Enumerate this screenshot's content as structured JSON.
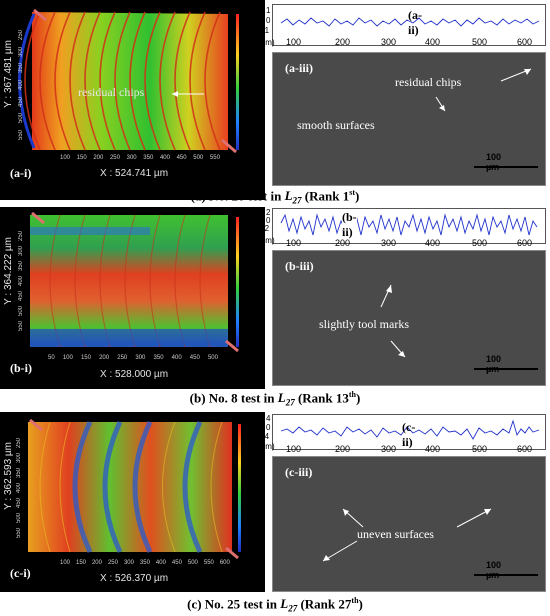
{
  "rows": [
    {
      "id": "a",
      "map_label": "(a-i)",
      "x_measure": "X : 524.741 µm",
      "y_measure": "Y : 367.481 µm",
      "x_ticks": [
        "100",
        "150",
        "200",
        "250",
        "300",
        "350",
        "400",
        "450",
        "500",
        "550"
      ],
      "y_ticks": [
        "250",
        "300",
        "350",
        "400",
        "450",
        "500",
        "550"
      ],
      "map_annotation": "residual chips",
      "profile_label": "(a-ii)",
      "profile_y_ticks": [
        "1",
        "0",
        "-1"
      ],
      "profile_unit": "(µm)",
      "profile_x_ticks": [
        "100",
        "200",
        "300",
        "400",
        "500",
        "600"
      ],
      "sem_label": "(a-iii)",
      "sem_annotations": [
        "residual chips",
        "smooth surfaces"
      ],
      "scale_bar": "100 µm",
      "caption_prefix": "(a)    No. 20 test in ",
      "caption_italic": "L",
      "caption_sub": "27",
      "caption_rank": " (Rank 1",
      "caption_sup": "st",
      "caption_close": ")"
    },
    {
      "id": "b",
      "map_label": "(b-i)",
      "x_measure": "X : 528.000 µm",
      "y_measure": "Y : 364.222 µm",
      "x_ticks": [
        "50",
        "100",
        "150",
        "200",
        "250",
        "300",
        "350",
        "400",
        "450",
        "500"
      ],
      "y_ticks": [
        "250",
        "300",
        "350",
        "400",
        "450",
        "500",
        "550"
      ],
      "profile_label": "(b-ii)",
      "profile_y_ticks": [
        "2",
        "0",
        "-2"
      ],
      "profile_unit": "(µm)",
      "profile_x_ticks": [
        "100",
        "200",
        "300",
        "400",
        "500",
        "600"
      ],
      "sem_label": "(b-iii)",
      "sem_annotations": [
        "slightly tool marks"
      ],
      "scale_bar": "100 µm",
      "caption_prefix": "(b)    No. 8 test in ",
      "caption_italic": "L",
      "caption_sub": "27",
      "caption_rank": " (Rank 13",
      "caption_sup": "th",
      "caption_close": ")"
    },
    {
      "id": "c",
      "map_label": "(c-i)",
      "x_measure": "X : 526.370 µm",
      "y_measure": "Y : 362.593 µm",
      "x_ticks": [
        "100",
        "150",
        "200",
        "250",
        "300",
        "350",
        "400",
        "450",
        "500",
        "550",
        "600"
      ],
      "y_ticks": [
        "250",
        "300",
        "350",
        "400",
        "450",
        "500",
        "550"
      ],
      "profile_label": "(c-ii)",
      "profile_y_ticks": [
        "4",
        "0",
        "-4"
      ],
      "profile_unit": "(µm)",
      "profile_x_ticks": [
        "100",
        "200",
        "300",
        "400",
        "500",
        "600"
      ],
      "sem_label": "(c-iii)",
      "sem_annotations": [
        "uneven surfaces"
      ],
      "scale_bar": "100 µm",
      "caption_prefix": "(c) No. 25 test in ",
      "caption_italic": "L",
      "caption_sub": "27",
      "caption_rank": " (Rank 27",
      "caption_sup": "th",
      "caption_close": ")"
    }
  ],
  "colors": {
    "profile_line": "#2233cc",
    "sem_background": "#4d4d4d",
    "map_background": "#000000"
  }
}
